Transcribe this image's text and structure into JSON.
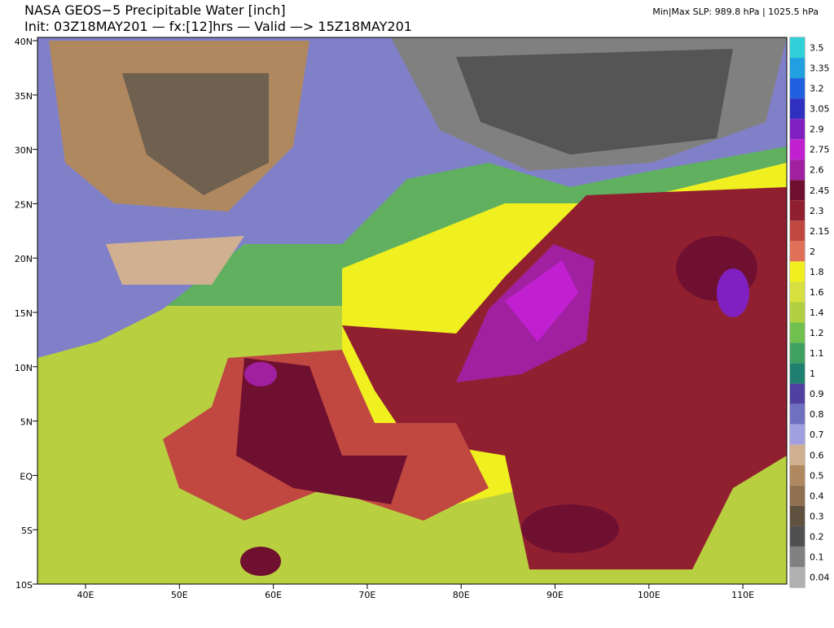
{
  "header": {
    "title": "NASA GEOS−5 Precipitable Water [inch]",
    "init": "Init: 03Z18MAY201 — fx:[12]hrs — Valid —> 15Z18MAY201",
    "slp": "Min|Max SLP: 989.8 hPa | 1025.5 hPa"
  },
  "map": {
    "lat_labels": [
      "40N",
      "35N",
      "30N",
      "25N",
      "20N",
      "15N",
      "10N",
      "5N",
      "EQ",
      "5S",
      "10S"
    ],
    "lon_labels": [
      "40E",
      "50E",
      "60E",
      "70E",
      "80E",
      "90E",
      "100E",
      "110E"
    ]
  },
  "colorbar": {
    "levels": [
      {
        "label": "3.5",
        "color": "#30d0d8"
      },
      {
        "label": "3.35",
        "color": "#20a0e0"
      },
      {
        "label": "3.2",
        "color": "#2060e0"
      },
      {
        "label": "3.05",
        "color": "#3030c0"
      },
      {
        "label": "2.9",
        "color": "#8020c0"
      },
      {
        "label": "2.75",
        "color": "#c020d0"
      },
      {
        "label": "2.6",
        "color": "#a020a0"
      },
      {
        "label": "2.45",
        "color": "#701030"
      },
      {
        "label": "2.3",
        "color": "#902030"
      },
      {
        "label": "2.15",
        "color": "#c04840"
      },
      {
        "label": "2",
        "color": "#e07058"
      },
      {
        "label": "1.8",
        "color": "#f0f020"
      },
      {
        "label": "1.6",
        "color": "#d8e040"
      },
      {
        "label": "1.4",
        "color": "#b0d040"
      },
      {
        "label": "1.2",
        "color": "#70c050"
      },
      {
        "label": "1.1",
        "color": "#40a060"
      },
      {
        "label": "1",
        "color": "#208070"
      },
      {
        "label": "0.9",
        "color": "#5040a0"
      },
      {
        "label": "0.8",
        "color": "#7070c0"
      },
      {
        "label": "0.7",
        "color": "#a0a0e0"
      },
      {
        "label": "0.6",
        "color": "#d0b090"
      },
      {
        "label": "0.5",
        "color": "#b08860"
      },
      {
        "label": "0.4",
        "color": "#907050"
      },
      {
        "label": "0.3",
        "color": "#605040"
      },
      {
        "label": "0.2",
        "color": "#505050"
      },
      {
        "label": "0.1",
        "color": "#808080"
      },
      {
        "label": "0.04",
        "color": "#b0b0b0"
      }
    ]
  }
}
